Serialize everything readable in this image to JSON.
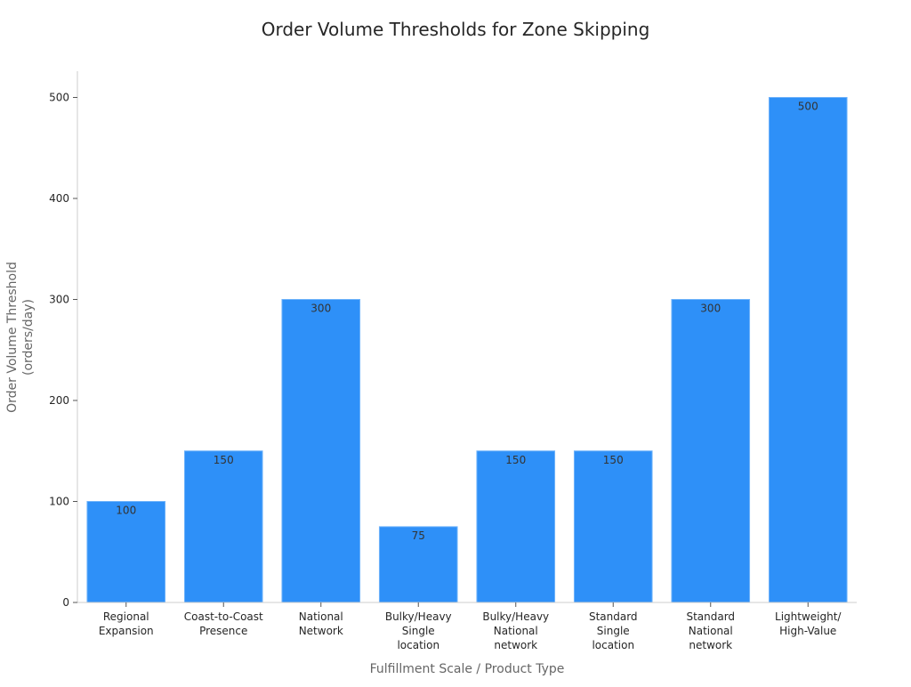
{
  "chart_data": {
    "type": "bar",
    "title": "Order Volume Thresholds for Zone Skipping",
    "xlabel": "Fulfillment Scale / Product Type",
    "ylabel": [
      "Order Volume Threshold",
      "(orders/day)"
    ],
    "categories": [
      [
        "Regional",
        "Expansion"
      ],
      [
        "Coast-to-Coast",
        "Presence"
      ],
      [
        "National",
        "Network"
      ],
      [
        "Bulky/Heavy",
        "Single",
        "location"
      ],
      [
        "Bulky/Heavy",
        "National",
        "network"
      ],
      [
        "Standard",
        "Single",
        "location"
      ],
      [
        "Standard",
        "National",
        "network"
      ],
      [
        "Lightweight/",
        "High-Value"
      ]
    ],
    "values": [
      100,
      150,
      300,
      75,
      150,
      150,
      300,
      500
    ],
    "data_labels": [
      "100",
      "150",
      "300",
      "75",
      "150",
      "150",
      "300",
      "500"
    ],
    "ylim": [
      0,
      526
    ],
    "yticks": [
      0,
      100,
      200,
      300,
      400,
      500
    ],
    "grid": false,
    "bar_color": "#2e90f8",
    "bar_edge_color": "#6fb3fa",
    "label_color": "#333333",
    "axis_color": "#cccccc"
  }
}
